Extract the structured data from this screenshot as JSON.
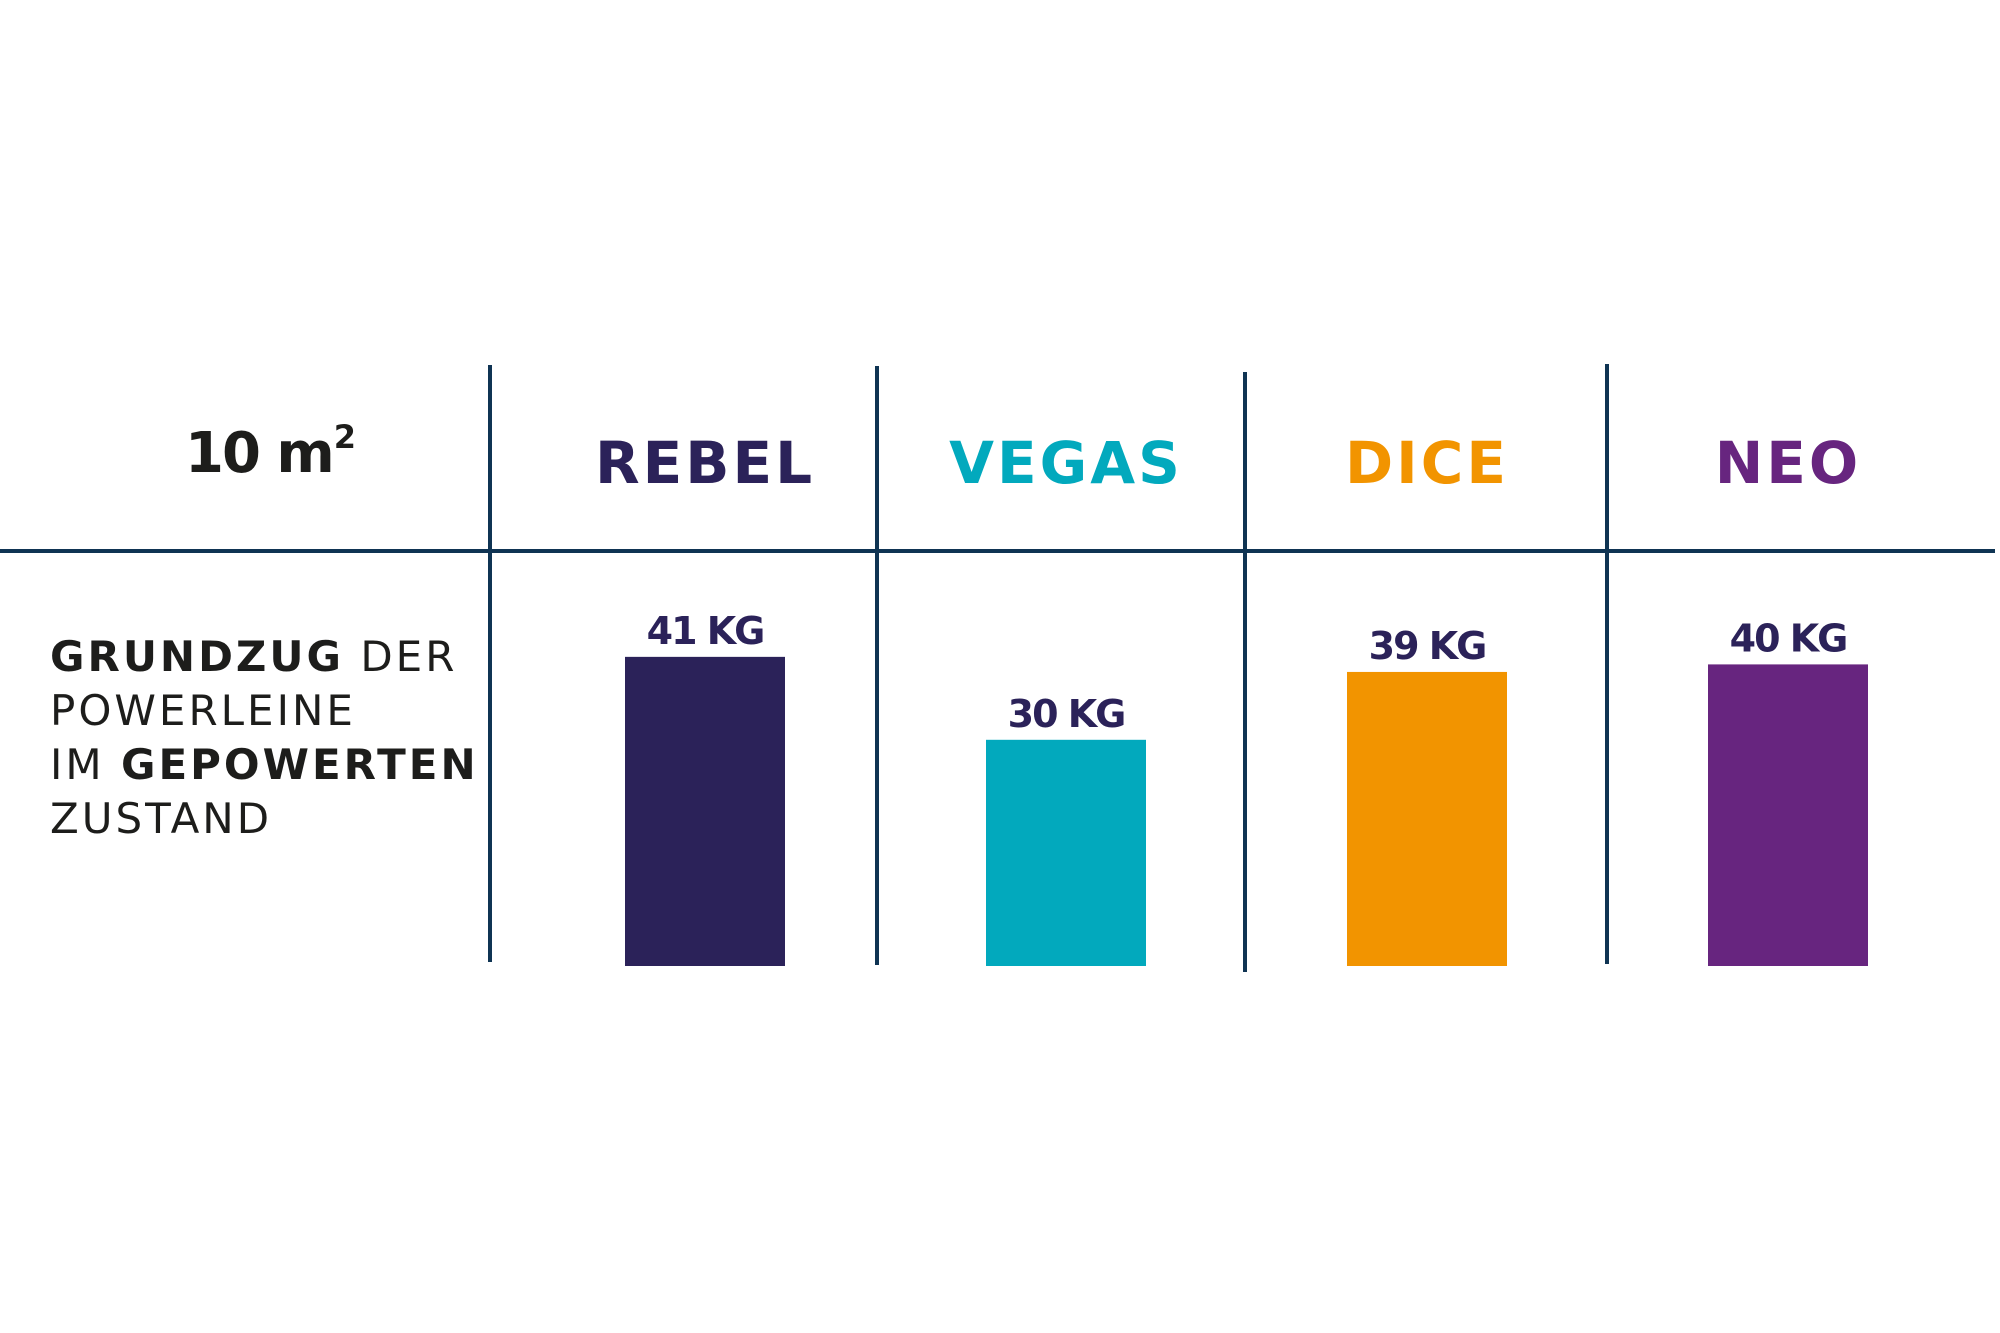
{
  "header": {
    "size_value": "10 m",
    "size_sup": "2"
  },
  "row_label": {
    "line1_bold": "GRUNDZUG",
    "line1_rest": " DER",
    "line2": "POWERLEINE",
    "line3_pre": "IM ",
    "line3_bold": "GEPOWERTEN",
    "line4": "ZUSTAND"
  },
  "chart_data": {
    "type": "bar",
    "categories": [
      "REBEL",
      "VEGAS",
      "DICE",
      "NEO"
    ],
    "values": [
      41,
      30,
      39,
      40
    ],
    "unit": "KG",
    "value_labels": [
      "41 KG",
      "30 KG",
      "39 KG",
      "40 KG"
    ],
    "colors": [
      "#2b2259",
      "#02a9bd",
      "#f29400",
      "#67257f"
    ],
    "value_label_color": "#2b2259",
    "grid_color": "#0f3453"
  }
}
